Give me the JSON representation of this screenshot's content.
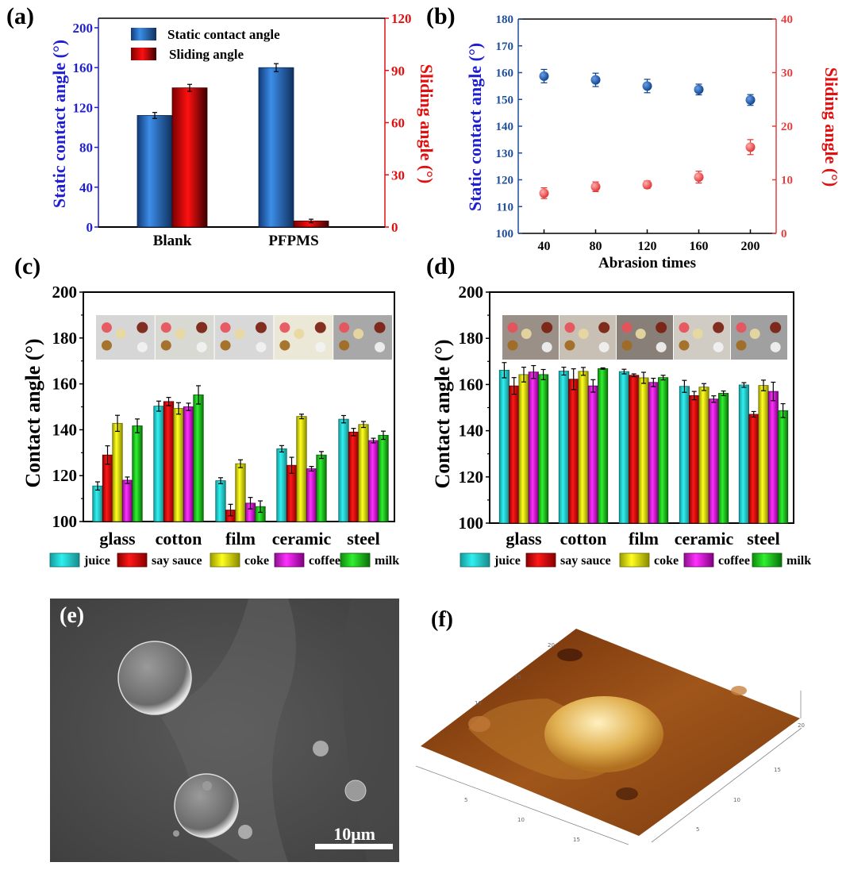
{
  "colors": {
    "blue": "#1f1fd0",
    "axis_blue": "#1f4f9a",
    "red": "#e01010",
    "juice": "#22d8d8",
    "say_sauce": "#e01010",
    "coke": "#e6e600",
    "coffee": "#e020e0",
    "milk": "#22c822"
  },
  "chart_data": [
    {
      "panel": "(a)",
      "type": "bar",
      "categories": [
        "Blank",
        "PFPMS"
      ],
      "series": [
        {
          "name": "Static contact angle",
          "axis": "left",
          "values": [
            112,
            160
          ],
          "errors": [
            3,
            4
          ]
        },
        {
          "name": "Sliding angle",
          "axis": "right",
          "values": [
            80,
            3.5
          ],
          "errors": [
            2,
            1
          ]
        }
      ],
      "ylabel": "Static contact angle (°)",
      "y2label": "Sliding angle (°)",
      "ylim": [
        0,
        200
      ],
      "y2lim": [
        0,
        120
      ],
      "yticks": [
        "0",
        "40",
        "80",
        "120",
        "160",
        "200"
      ],
      "y2ticks": [
        "0",
        "30",
        "60",
        "90",
        "120"
      ],
      "legend": "top-left"
    },
    {
      "panel": "(b)",
      "type": "scatter",
      "x": [
        40,
        80,
        120,
        160,
        200
      ],
      "xticks": [
        "40",
        "80",
        "120",
        "160",
        "200"
      ],
      "series": [
        {
          "name": "Static contact angle",
          "axis": "left",
          "values": [
            158.7,
            157.3,
            155.0,
            153.7,
            149.8
          ],
          "errors": [
            2.5,
            2.5,
            2.5,
            2.0,
            2.0
          ]
        },
        {
          "name": "Sliding angle",
          "axis": "right",
          "values": [
            7.5,
            8.7,
            9.1,
            10.5,
            16.1
          ],
          "errors": [
            1.0,
            0.9,
            0.7,
            1.1,
            1.4
          ]
        }
      ],
      "xlabel": "Abrasion times",
      "ylabel": "Static contact angle (°)",
      "y2label": "Sliding angle (°)",
      "xlim": [
        20,
        220
      ],
      "ylim": [
        100,
        180
      ],
      "y2lim": [
        0,
        40
      ],
      "yticks": [
        "100",
        "110",
        "120",
        "130",
        "140",
        "150",
        "160",
        "170",
        "180"
      ],
      "y2ticks": [
        "0",
        "10",
        "20",
        "30",
        "40"
      ]
    },
    {
      "panel": "(c)",
      "type": "bar",
      "categories": [
        "glass",
        "cotton",
        "film",
        "ceramic",
        "steel"
      ],
      "series": [
        {
          "name": "juice",
          "values": [
            115.5,
            150.3,
            117.8,
            131.7,
            144.6
          ],
          "errors": [
            1.8,
            2.2,
            1.3,
            1.4,
            1.6
          ]
        },
        {
          "name": "say sauce",
          "values": [
            129.0,
            152.3,
            105.0,
            124.5,
            139.0
          ],
          "errors": [
            4.0,
            1.8,
            2.5,
            3.5,
            1.6
          ]
        },
        {
          "name": "coke",
          "values": [
            142.8,
            149.3,
            125.2,
            145.8,
            142.3
          ],
          "errors": [
            3.5,
            2.5,
            1.7,
            1.0,
            1.3
          ]
        },
        {
          "name": "coffee",
          "values": [
            118.0,
            150.0,
            108.0,
            123.0,
            135.3
          ],
          "errors": [
            1.4,
            1.6,
            2.5,
            1.0,
            1.0
          ]
        },
        {
          "name": "milk",
          "values": [
            141.7,
            155.2,
            106.5,
            129.0,
            137.6
          ],
          "errors": [
            3.0,
            4.0,
            2.5,
            1.5,
            1.8
          ]
        }
      ],
      "ylabel": "Contact angle (°)",
      "ylim": [
        100,
        200
      ],
      "yticks": [
        "100",
        "120",
        "140",
        "160",
        "180",
        "200"
      ],
      "legend": "bottom"
    },
    {
      "panel": "(d)",
      "type": "bar",
      "categories": [
        "glass",
        "cotton",
        "film",
        "ceramic",
        "steel"
      ],
      "series": [
        {
          "name": "juice",
          "values": [
            166.2,
            165.8,
            165.6,
            159.2,
            159.8
          ],
          "errors": [
            3.3,
            1.7,
            1.0,
            2.6,
            1.0
          ]
        },
        {
          "name": "say sauce",
          "values": [
            159.4,
            162.3,
            164.0,
            155.2,
            147.1
          ],
          "errors": [
            3.6,
            4.5,
            0.6,
            1.8,
            1.2
          ]
        },
        {
          "name": "coke",
          "values": [
            164.3,
            165.7,
            162.9,
            158.9,
            159.6
          ],
          "errors": [
            3.2,
            1.7,
            2.4,
            1.5,
            2.3
          ]
        },
        {
          "name": "coffee",
          "values": [
            165.4,
            159.4,
            160.9,
            153.7,
            157.0
          ],
          "errors": [
            2.8,
            2.7,
            1.8,
            1.4,
            4.0
          ]
        },
        {
          "name": "milk",
          "values": [
            164.3,
            166.9,
            163.0,
            156.2,
            148.7
          ],
          "errors": [
            2.2,
            0.3,
            1.0,
            1.0,
            3.0
          ]
        }
      ],
      "ylabel": "Contact angle (°)",
      "ylim": [
        100,
        200
      ],
      "yticks": [
        "100",
        "120",
        "140",
        "160",
        "180",
        "200"
      ],
      "legend": "bottom"
    }
  ],
  "panels": {
    "a": {
      "label": "(a)",
      "ylabel": "Static contact angle (°)",
      "y2label": "Sliding angle (°)"
    },
    "b": {
      "label": "(b)",
      "ylabel": "Static contact angle (°)",
      "y2label": "Sliding angle (°)",
      "xlabel": "Abrasion times"
    },
    "c": {
      "label": "(c)",
      "ylabel": "Contact angle (°)"
    },
    "d": {
      "label": "(d)",
      "ylabel": "Contact angle (°)"
    },
    "e": {
      "label": "(e)",
      "scale_bar": "10μm"
    },
    "f": {
      "label": "(f)",
      "axis_ticks_left": [
        "5",
        "10",
        "15"
      ],
      "axis_ticks_right": [
        "5",
        "10",
        "15"
      ],
      "axis_ticks_back": [
        "10",
        "15",
        "20"
      ],
      "z_tick": "20"
    }
  }
}
